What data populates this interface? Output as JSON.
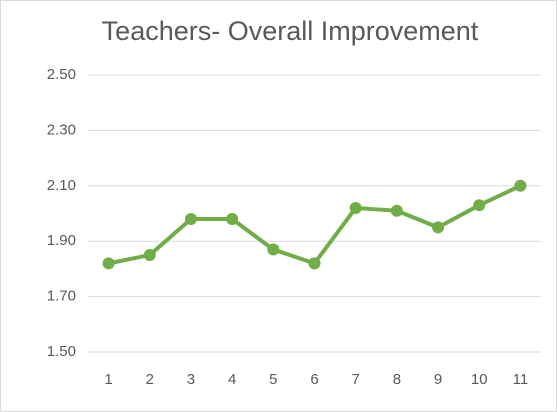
{
  "chart_data": {
    "type": "line",
    "title": "Teachers- Overall Improvement",
    "categories": [
      "1",
      "2",
      "3",
      "4",
      "5",
      "6",
      "7",
      "8",
      "9",
      "10",
      "11"
    ],
    "series": [
      {
        "name": "Overall Improvement",
        "color": "#70ad47",
        "values": [
          1.82,
          1.85,
          1.98,
          1.98,
          1.87,
          1.82,
          2.02,
          2.01,
          1.95,
          2.03,
          2.1
        ]
      }
    ],
    "ylim": [
      1.5,
      2.5
    ],
    "yticks": [
      {
        "value": 1.5,
        "label": "1.50"
      },
      {
        "value": 1.7,
        "label": "1.70"
      },
      {
        "value": 1.9,
        "label": "1.90"
      },
      {
        "value": 2.1,
        "label": "2.10"
      },
      {
        "value": 2.3,
        "label": "2.30"
      },
      {
        "value": 2.5,
        "label": "2.50"
      }
    ],
    "grid": true
  }
}
